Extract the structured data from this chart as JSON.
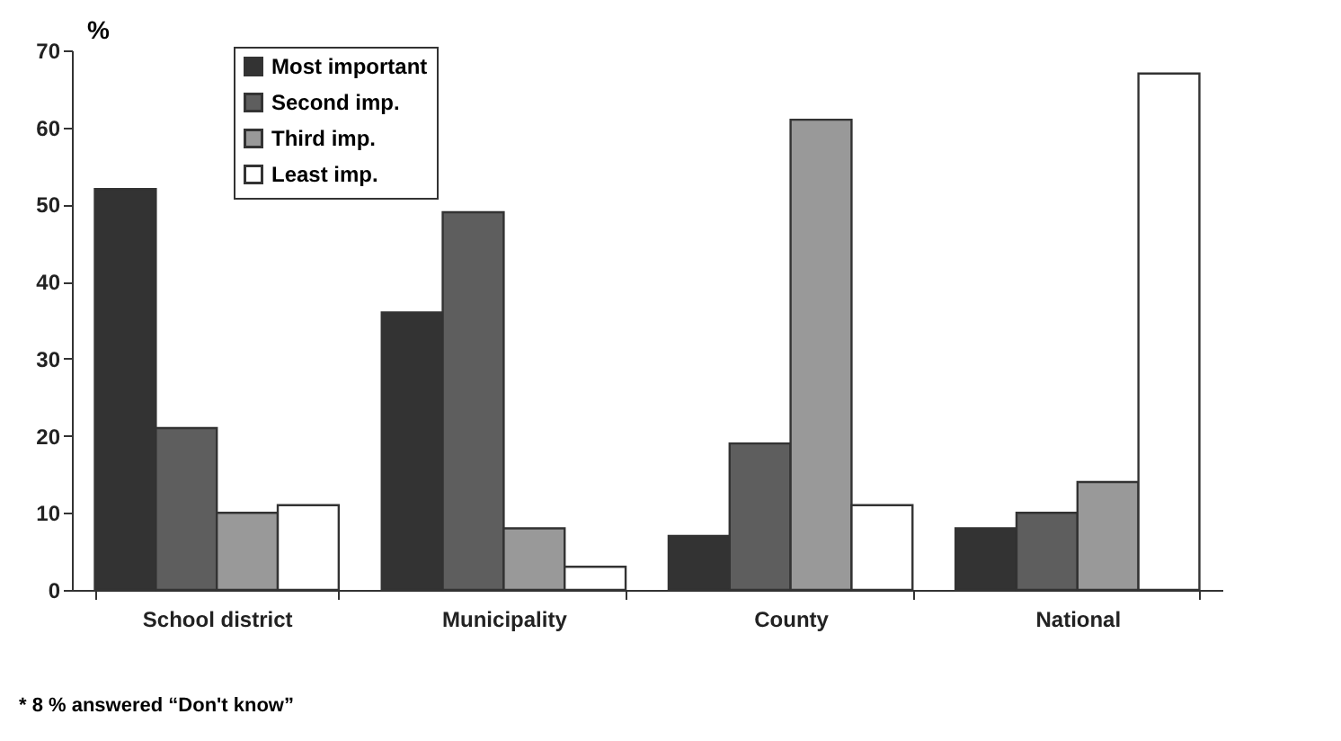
{
  "chart_data": {
    "type": "bar",
    "ylabel": "%",
    "categories": [
      "School district",
      "Municipality",
      "County",
      "National"
    ],
    "series": [
      {
        "name": "Most important",
        "color": "#333333",
        "values": [
          52,
          36,
          7,
          8
        ]
      },
      {
        "name": "Second imp.",
        "color": "#5e5e5e",
        "values": [
          21,
          49,
          19,
          10
        ]
      },
      {
        "name": "Third imp.",
        "color": "#999999",
        "values": [
          10,
          8,
          61,
          14
        ]
      },
      {
        "name": "Least imp.",
        "color": "#ffffff",
        "values": [
          11,
          3,
          11,
          67
        ]
      }
    ],
    "ylim": [
      0,
      70
    ],
    "yticks": [
      0,
      10,
      20,
      30,
      40,
      50,
      60,
      70
    ],
    "grid": false,
    "legend": "top left",
    "annotations": [
      "* 8 % answered “Don't know”"
    ]
  }
}
